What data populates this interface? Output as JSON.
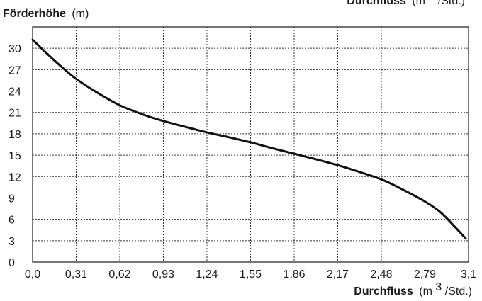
{
  "chart_data": {
    "type": "line",
    "title": "",
    "ylabel": {
      "bold": "Förderhöhe",
      "unit": "(m)"
    },
    "xlabel": {
      "bold": "Durchfluss",
      "unit_prefix": "(m",
      "unit_sup": "3",
      "unit_suffix": "/Std.)"
    },
    "grid": true,
    "xlim": [
      0,
      3.1
    ],
    "ylim": [
      0,
      33
    ],
    "x_ticks": [
      0,
      0.31,
      0.62,
      0.93,
      1.24,
      1.55,
      1.86,
      2.17,
      2.48,
      2.79,
      3.1
    ],
    "x_tick_labels": [
      "0,0",
      "0,31",
      "0,62",
      "0,93",
      "1,24",
      "1,55",
      "1,86",
      "2,17",
      "2,48",
      "2,79",
      "3,1"
    ],
    "y_ticks": [
      0,
      3,
      6,
      9,
      12,
      15,
      18,
      21,
      24,
      27,
      30
    ],
    "y_tick_labels": [
      "0",
      "3",
      "6",
      "9",
      "12",
      "15",
      "18",
      "21",
      "24",
      "27",
      "30"
    ],
    "series": [
      {
        "x": [
          0.0,
          0.1,
          0.2,
          0.31,
          0.45,
          0.62,
          0.8,
          0.93,
          1.1,
          1.24,
          1.4,
          1.55,
          1.7,
          1.86,
          2.0,
          2.17,
          2.3,
          2.48,
          2.6,
          2.79,
          2.9,
          3.0,
          3.08
        ],
        "y": [
          31.2,
          29.3,
          27.5,
          25.7,
          23.9,
          22.0,
          20.6,
          19.8,
          18.9,
          18.2,
          17.5,
          16.8,
          16.0,
          15.2,
          14.5,
          13.6,
          12.8,
          11.6,
          10.5,
          8.5,
          7.0,
          5.0,
          3.3
        ]
      }
    ]
  }
}
